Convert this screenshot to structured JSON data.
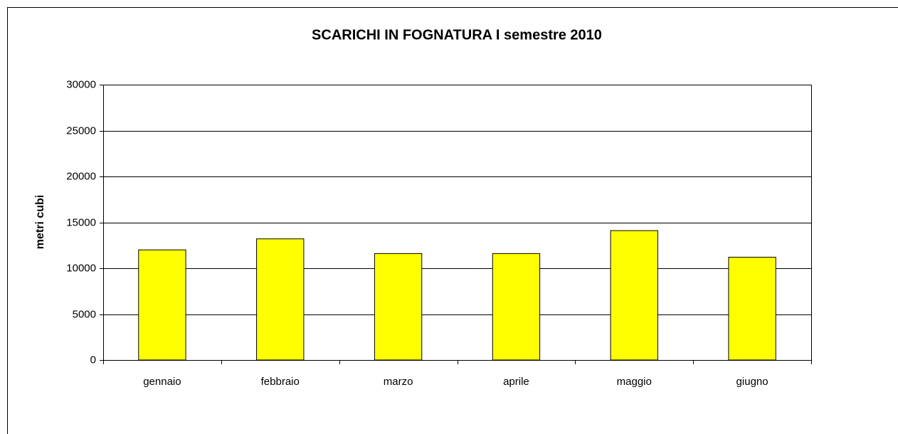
{
  "chart_data": {
    "type": "bar",
    "title": "SCARICHI IN FOGNATURA I semestre 2010",
    "y_label": "metri cubi",
    "categories": [
      "gennaio",
      "febbraio",
      "marzo",
      "aprile",
      "maggio",
      "giugno"
    ],
    "values": [
      12000,
      13200,
      11600,
      11600,
      14100,
      11200
    ],
    "color": "#ffff00",
    "ylim": [
      0,
      30000
    ],
    "yticks": [
      0,
      5000,
      10000,
      15000,
      20000,
      25000,
      30000
    ],
    "grid": true
  }
}
